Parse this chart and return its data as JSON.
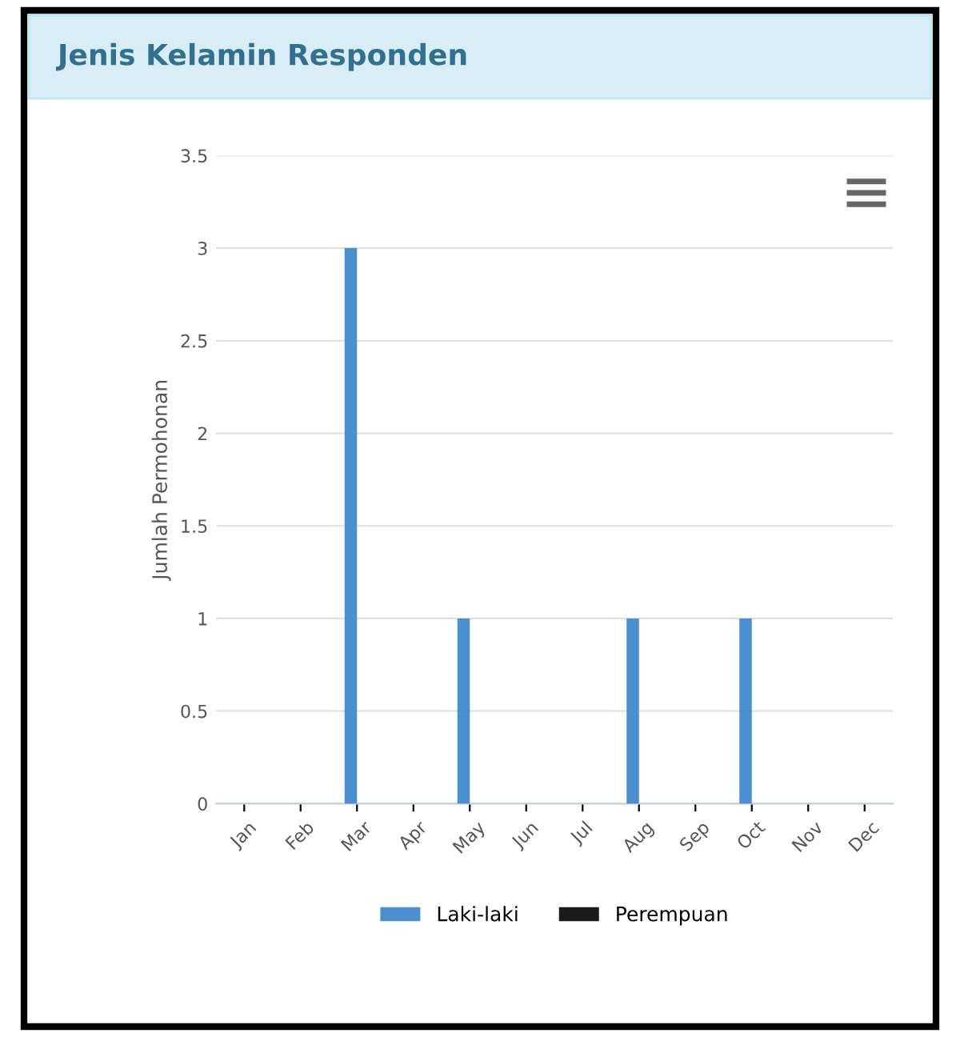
{
  "chart_data": {
    "type": "bar",
    "title": "Jenis Kelamin Responden",
    "ylabel": "Jumlah Permohonan",
    "categories": [
      "Jan",
      "Feb",
      "Mar",
      "Apr",
      "May",
      "Jun",
      "Jul",
      "Aug",
      "Sep",
      "Oct",
      "Nov",
      "Dec"
    ],
    "series": [
      {
        "name": "Laki-laki",
        "color": "#4a8fd0",
        "values": [
          0,
          0,
          3,
          0,
          1,
          0,
          0,
          1,
          0,
          1,
          0,
          0
        ]
      },
      {
        "name": "Perempuan",
        "color": "#1a1a1a",
        "values": [
          0,
          0,
          0,
          0,
          0,
          0,
          0,
          0,
          0,
          0,
          0,
          0
        ]
      }
    ],
    "ylim": [
      0,
      3.5
    ],
    "yticks": [
      0,
      0.5,
      1,
      1.5,
      2,
      2.5,
      3,
      3.5
    ],
    "grid": "y",
    "legend": "bottom"
  }
}
